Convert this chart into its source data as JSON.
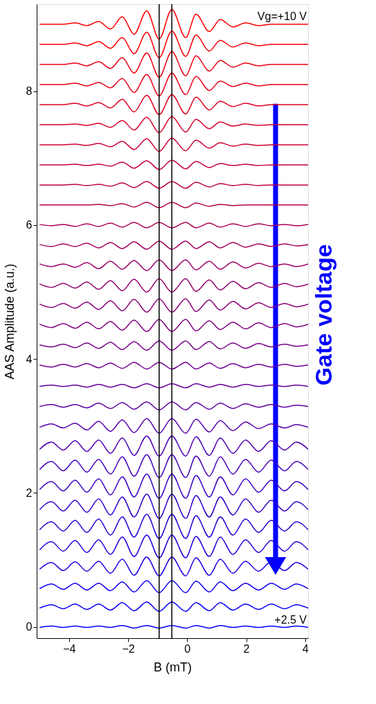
{
  "chart_data": {
    "type": "line",
    "xlabel": "B (mT)",
    "ylabel": "AAS Amplitude (a.u.)",
    "xlim": [
      -5.1,
      4.1
    ],
    "xticks": [
      -4,
      -2,
      0,
      2,
      4
    ],
    "ylim": [
      -0.17,
      9.3
    ],
    "yticks": [
      0,
      2,
      4,
      6,
      8
    ],
    "grid": false,
    "legend": false,
    "marker": "none",
    "line_style": "solid",
    "x": [
      -5.0,
      -4.6,
      -4.2,
      -3.8,
      -3.4,
      -3.0,
      -2.6,
      -2.2,
      -1.8,
      -1.37,
      -0.95,
      -0.52,
      -0.05,
      0.3,
      0.75,
      1.12,
      1.55,
      1.98,
      2.42,
      2.85,
      3.3,
      3.7,
      4.1
    ],
    "series": [
      {
        "name": "Vg=+10 V",
        "color": "#ff0000",
        "values": [
          9.0,
          9.0,
          9.0,
          9.02,
          8.98,
          9.04,
          8.93,
          9.11,
          8.85,
          9.2,
          8.78,
          9.22,
          8.8,
          9.15,
          8.89,
          9.07,
          8.96,
          9.02,
          8.98,
          9.0,
          9.0,
          9.0,
          9.0
        ]
      },
      {
        "color": "#f70008",
        "values": [
          8.7,
          8.7,
          8.7,
          8.72,
          8.68,
          8.74,
          8.64,
          8.8,
          8.56,
          8.88,
          8.5,
          8.9,
          8.52,
          8.84,
          8.6,
          8.76,
          8.66,
          8.72,
          8.68,
          8.7,
          8.7,
          8.7,
          8.7
        ]
      },
      {
        "color": "#ee0011",
        "values": [
          8.4,
          8.4,
          8.4,
          8.42,
          8.38,
          8.44,
          8.34,
          8.5,
          8.27,
          8.57,
          8.21,
          8.59,
          8.23,
          8.53,
          8.3,
          8.46,
          8.36,
          8.42,
          8.38,
          8.4,
          8.4,
          8.4,
          8.4
        ]
      },
      {
        "color": "#e60019",
        "values": [
          8.1,
          8.1,
          8.1,
          8.12,
          8.08,
          8.13,
          8.05,
          8.19,
          7.98,
          8.25,
          7.93,
          8.27,
          7.95,
          8.22,
          8.01,
          8.15,
          8.07,
          8.12,
          8.08,
          8.1,
          8.1,
          8.1,
          8.1
        ]
      },
      {
        "color": "#dd0022",
        "values": [
          7.8,
          7.8,
          7.8,
          7.82,
          7.78,
          7.83,
          7.75,
          7.88,
          7.69,
          7.94,
          7.65,
          7.95,
          7.66,
          7.91,
          7.72,
          7.85,
          7.77,
          7.82,
          7.78,
          7.8,
          7.8,
          7.8,
          7.8
        ]
      },
      {
        "color": "#d5002a",
        "values": [
          7.5,
          7.5,
          7.5,
          7.51,
          7.49,
          7.52,
          7.46,
          7.56,
          7.42,
          7.61,
          7.38,
          7.62,
          7.39,
          7.58,
          7.44,
          7.54,
          7.48,
          7.51,
          7.49,
          7.5,
          7.5,
          7.5,
          7.5
        ]
      },
      {
        "color": "#cc0033",
        "values": [
          7.2,
          7.2,
          7.2,
          7.21,
          7.19,
          7.22,
          7.17,
          7.25,
          7.13,
          7.29,
          7.1,
          7.3,
          7.11,
          7.27,
          7.15,
          7.23,
          7.18,
          7.21,
          7.19,
          7.2,
          7.2,
          7.2,
          7.2
        ]
      },
      {
        "color": "#c4003b",
        "values": [
          6.9,
          6.9,
          6.9,
          6.91,
          6.89,
          6.91,
          6.88,
          6.94,
          6.85,
          6.96,
          6.83,
          6.97,
          6.84,
          6.95,
          6.86,
          6.92,
          6.89,
          6.91,
          6.89,
          6.9,
          6.9,
          6.9,
          6.9
        ]
      },
      {
        "color": "#bb0044",
        "values": [
          6.6,
          6.6,
          6.6,
          6.61,
          6.59,
          6.61,
          6.58,
          6.63,
          6.56,
          6.65,
          6.55,
          6.65,
          6.55,
          6.64,
          6.57,
          6.62,
          6.59,
          6.61,
          6.59,
          6.6,
          6.6,
          6.6,
          6.6
        ]
      },
      {
        "color": "#b3004c",
        "values": [
          6.3,
          6.3,
          6.3,
          6.3,
          6.3,
          6.31,
          6.29,
          6.32,
          6.27,
          6.34,
          6.26,
          6.34,
          6.26,
          6.33,
          6.28,
          6.31,
          6.29,
          6.3,
          6.3,
          6.3,
          6.3,
          6.3,
          6.3
        ]
      },
      {
        "color": "#aa0055",
        "values": [
          6.01,
          5.99,
          6.01,
          5.98,
          6.02,
          5.98,
          6.03,
          5.97,
          6.04,
          5.96,
          6.04,
          5.96,
          6.04,
          5.96,
          6.03,
          5.97,
          6.02,
          5.98,
          6.02,
          5.99,
          6.01,
          5.99,
          6.01
        ]
      },
      {
        "color": "#a2005d",
        "values": [
          5.71,
          5.68,
          5.72,
          5.68,
          5.73,
          5.66,
          5.74,
          5.65,
          5.75,
          5.64,
          5.76,
          5.64,
          5.76,
          5.65,
          5.75,
          5.66,
          5.74,
          5.67,
          5.72,
          5.68,
          5.72,
          5.69,
          5.71
        ]
      },
      {
        "color": "#990066",
        "values": [
          5.42,
          5.38,
          5.42,
          5.37,
          5.44,
          5.35,
          5.46,
          5.34,
          5.47,
          5.32,
          5.48,
          5.32,
          5.48,
          5.33,
          5.46,
          5.34,
          5.45,
          5.36,
          5.43,
          5.38,
          5.42,
          5.38,
          5.42
        ]
      },
      {
        "color": "#91006e",
        "values": [
          5.12,
          5.07,
          5.13,
          5.06,
          5.15,
          5.04,
          5.17,
          5.02,
          5.19,
          5.0,
          5.2,
          5.0,
          5.2,
          5.01,
          5.18,
          5.03,
          5.16,
          5.05,
          5.14,
          5.07,
          5.13,
          5.08,
          5.12
        ]
      },
      {
        "color": "#880077",
        "values": [
          4.82,
          4.77,
          4.83,
          4.76,
          4.85,
          4.74,
          4.87,
          4.72,
          4.89,
          4.7,
          4.9,
          4.7,
          4.9,
          4.71,
          4.88,
          4.73,
          4.86,
          4.75,
          4.84,
          4.77,
          4.83,
          4.78,
          4.82
        ]
      },
      {
        "color": "#80007f",
        "values": [
          4.52,
          4.47,
          4.53,
          4.46,
          4.55,
          4.45,
          4.56,
          4.43,
          4.58,
          4.41,
          4.59,
          4.41,
          4.59,
          4.42,
          4.57,
          4.44,
          4.55,
          4.45,
          4.54,
          4.47,
          4.53,
          4.48,
          4.52
        ]
      },
      {
        "color": "#770088",
        "values": [
          4.21,
          4.18,
          4.22,
          4.17,
          4.24,
          4.16,
          4.25,
          4.14,
          4.26,
          4.13,
          4.27,
          4.13,
          4.27,
          4.14,
          4.26,
          4.15,
          4.24,
          4.16,
          4.23,
          4.18,
          4.22,
          4.19,
          4.21
        ]
      },
      {
        "color": "#6f0090",
        "values": [
          3.91,
          3.88,
          3.92,
          3.88,
          3.93,
          3.87,
          3.94,
          3.86,
          3.95,
          3.85,
          3.95,
          3.85,
          3.95,
          3.85,
          3.94,
          3.86,
          3.93,
          3.87,
          3.92,
          3.88,
          3.92,
          3.89,
          3.91
        ]
      },
      {
        "color": "#660099",
        "values": [
          3.59,
          3.61,
          3.59,
          3.61,
          3.58,
          3.62,
          3.58,
          3.62,
          3.57,
          3.63,
          3.57,
          3.63,
          3.57,
          3.63,
          3.58,
          3.62,
          3.58,
          3.62,
          3.59,
          3.61,
          3.59,
          3.61,
          3.59
        ]
      },
      {
        "color": "#5e00a1",
        "values": [
          3.29,
          3.32,
          3.28,
          3.32,
          3.27,
          3.34,
          3.26,
          3.35,
          3.25,
          3.36,
          3.24,
          3.36,
          3.24,
          3.35,
          3.25,
          3.34,
          3.26,
          3.33,
          3.28,
          3.32,
          3.28,
          3.31,
          3.29
        ]
      },
      {
        "color": "#5500aa",
        "values": [
          2.98,
          3.03,
          2.97,
          3.04,
          2.94,
          3.07,
          2.92,
          3.09,
          2.9,
          3.11,
          2.89,
          3.11,
          2.89,
          3.1,
          2.91,
          3.08,
          2.93,
          3.06,
          2.96,
          3.03,
          2.97,
          3.02,
          2.98
        ]
      },
      {
        "color": "#4d00b2",
        "values": [
          2.65,
          2.76,
          2.64,
          2.78,
          2.62,
          2.79,
          2.59,
          2.82,
          2.56,
          2.85,
          2.55,
          2.85,
          2.55,
          2.84,
          2.56,
          2.82,
          2.59,
          2.79,
          2.62,
          2.78,
          2.64,
          2.76,
          2.65
        ]
      },
      {
        "color": "#4400bb",
        "values": [
          2.35,
          2.47,
          2.33,
          2.49,
          2.31,
          2.5,
          2.28,
          2.54,
          2.25,
          2.57,
          2.23,
          2.57,
          2.23,
          2.55,
          2.25,
          2.54,
          2.28,
          2.5,
          2.31,
          2.49,
          2.33,
          2.47,
          2.35
        ]
      },
      {
        "color": "#3c00c3",
        "values": [
          2.05,
          2.17,
          2.03,
          2.19,
          2.01,
          2.21,
          1.97,
          2.24,
          1.94,
          2.28,
          1.92,
          2.28,
          1.92,
          2.26,
          1.94,
          2.24,
          1.97,
          2.21,
          2.01,
          2.19,
          2.03,
          2.17,
          2.05
        ]
      },
      {
        "color": "#3300cc",
        "values": [
          1.75,
          1.87,
          1.73,
          1.89,
          1.71,
          1.91,
          1.67,
          1.94,
          1.64,
          1.98,
          1.62,
          1.98,
          1.62,
          1.96,
          1.64,
          1.94,
          1.67,
          1.91,
          1.71,
          1.89,
          1.73,
          1.87,
          1.75
        ]
      },
      {
        "color": "#2b00d4",
        "values": [
          1.45,
          1.57,
          1.43,
          1.59,
          1.41,
          1.61,
          1.37,
          1.64,
          1.34,
          1.68,
          1.32,
          1.68,
          1.32,
          1.66,
          1.34,
          1.64,
          1.37,
          1.61,
          1.41,
          1.59,
          1.43,
          1.57,
          1.45
        ]
      },
      {
        "color": "#2200dd",
        "values": [
          1.15,
          1.27,
          1.13,
          1.29,
          1.11,
          1.3,
          1.08,
          1.34,
          1.05,
          1.37,
          1.03,
          1.37,
          1.03,
          1.35,
          1.05,
          1.34,
          1.08,
          1.3,
          1.11,
          1.29,
          1.13,
          1.27,
          1.15
        ]
      },
      {
        "color": "#1a00e5",
        "values": [
          0.86,
          0.96,
          0.84,
          0.97,
          0.83,
          0.98,
          0.8,
          1.01,
          0.77,
          1.04,
          0.76,
          1.04,
          0.76,
          1.03,
          0.77,
          1.01,
          0.8,
          0.98,
          0.83,
          0.97,
          0.84,
          0.96,
          0.86
        ]
      },
      {
        "color": "#1100ee",
        "values": [
          0.57,
          0.64,
          0.56,
          0.65,
          0.55,
          0.65,
          0.54,
          0.67,
          0.52,
          0.69,
          0.51,
          0.69,
          0.51,
          0.68,
          0.52,
          0.67,
          0.54,
          0.65,
          0.55,
          0.65,
          0.56,
          0.64,
          0.57
        ]
      },
      {
        "color": "#0900f6",
        "values": [
          0.28,
          0.33,
          0.27,
          0.34,
          0.26,
          0.34,
          0.25,
          0.36,
          0.24,
          0.37,
          0.23,
          0.37,
          0.23,
          0.36,
          0.24,
          0.36,
          0.25,
          0.34,
          0.26,
          0.34,
          0.27,
          0.33,
          0.28
        ]
      },
      {
        "name": "+2.5 V",
        "color": "#0000ff",
        "values": [
          -0.01,
          0.01,
          -0.01,
          0.01,
          -0.01,
          0.01,
          -0.01,
          0.02,
          -0.02,
          0.02,
          -0.02,
          0.02,
          -0.02,
          0.02,
          -0.02,
          0.02,
          -0.01,
          0.01,
          -0.01,
          0.01,
          -0.01,
          0.01,
          -0.01
        ]
      }
    ],
    "ref_lines": [
      {
        "axis": "x",
        "value": -0.95,
        "color": "#000000"
      },
      {
        "axis": "x",
        "value": -0.52,
        "color": "#000000"
      }
    ],
    "annotations": [
      "Gate voltage"
    ]
  }
}
